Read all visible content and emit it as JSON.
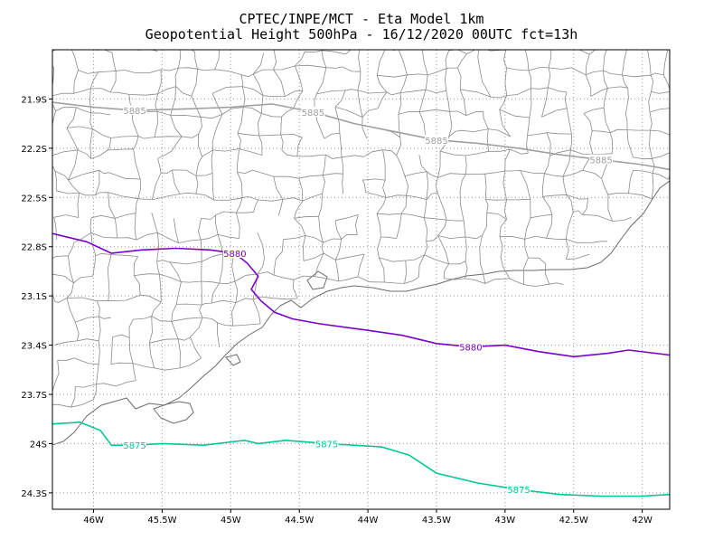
{
  "header": {
    "line1": "CPTEC/INPE/MCT -  Eta Model 1km",
    "line2": "Geopotential Height 500hPa - 16/12/2020 00UTC fct=13h"
  },
  "map": {
    "lon_range": [
      -46.3,
      -41.8
    ],
    "lat_range": [
      -24.4,
      -21.6
    ],
    "lon_ticks": [
      {
        "value": -46.0,
        "label": "46W"
      },
      {
        "value": -45.5,
        "label": "45.5W"
      },
      {
        "value": -45.0,
        "label": "45W"
      },
      {
        "value": -44.5,
        "label": "44.5W"
      },
      {
        "value": -44.0,
        "label": "44W"
      },
      {
        "value": -43.5,
        "label": "43.5W"
      },
      {
        "value": -43.0,
        "label": "43W"
      },
      {
        "value": -42.5,
        "label": "42.5W"
      },
      {
        "value": -42.0,
        "label": "42W"
      }
    ],
    "lat_ticks": [
      {
        "value": -21.9,
        "label": "21.9S"
      },
      {
        "value": -22.2,
        "label": "22.2S"
      },
      {
        "value": -22.5,
        "label": "22.5S"
      },
      {
        "value": -22.8,
        "label": "22.8S"
      },
      {
        "value": -23.1,
        "label": "23.1S"
      },
      {
        "value": -23.4,
        "label": "23.4S"
      },
      {
        "value": -23.7,
        "label": "23.7S"
      },
      {
        "value": -24.0,
        "label": "24S"
      },
      {
        "value": -24.3,
        "label": "24.3S"
      }
    ],
    "grid": "dotted",
    "contours": [
      {
        "level": "5885",
        "color": "#a0a0a0",
        "labels": [
          "5885",
          "5885",
          "5885",
          "5885"
        ],
        "points": [
          [
            -46.3,
            -21.92
          ],
          [
            -46.0,
            -21.95
          ],
          [
            -45.7,
            -21.97
          ],
          [
            -45.3,
            -21.96
          ],
          [
            -45.0,
            -21.95
          ],
          [
            -44.7,
            -21.93
          ],
          [
            -44.4,
            -21.98
          ],
          [
            -44.1,
            -22.05
          ],
          [
            -43.8,
            -22.1
          ],
          [
            -43.5,
            -22.15
          ],
          [
            -43.2,
            -22.17
          ],
          [
            -42.9,
            -22.2
          ],
          [
            -42.6,
            -22.24
          ],
          [
            -42.3,
            -22.27
          ],
          [
            -42.0,
            -22.3
          ],
          [
            -41.8,
            -22.33
          ]
        ]
      },
      {
        "level": "5880",
        "color": "#7a00cc",
        "labels": [
          "5880",
          "5880"
        ],
        "points": [
          [
            -46.3,
            -22.72
          ],
          [
            -46.05,
            -22.77
          ],
          [
            -45.87,
            -22.84
          ],
          [
            -45.65,
            -22.82
          ],
          [
            -45.4,
            -22.81
          ],
          [
            -45.15,
            -22.82
          ],
          [
            -44.97,
            -22.84
          ],
          [
            -44.88,
            -22.9
          ],
          [
            -44.8,
            -22.98
          ],
          [
            -44.85,
            -23.06
          ],
          [
            -44.78,
            -23.13
          ],
          [
            -44.68,
            -23.2
          ],
          [
            -44.55,
            -23.24
          ],
          [
            -44.35,
            -23.27
          ],
          [
            -44.0,
            -23.31
          ],
          [
            -43.75,
            -23.34
          ],
          [
            -43.5,
            -23.39
          ],
          [
            -43.25,
            -23.41
          ],
          [
            -43.0,
            -23.4
          ],
          [
            -42.75,
            -23.44
          ],
          [
            -42.5,
            -23.47
          ],
          [
            -42.25,
            -23.45
          ],
          [
            -42.1,
            -23.43
          ],
          [
            -41.8,
            -23.46
          ]
        ]
      },
      {
        "level": "5875",
        "color": "#00c896",
        "labels": [
          "5875",
          "5875",
          "5875"
        ],
        "points": [
          [
            -46.3,
            -23.88
          ],
          [
            -46.1,
            -23.87
          ],
          [
            -45.95,
            -23.92
          ],
          [
            -45.87,
            -24.01
          ],
          [
            -45.7,
            -24.01
          ],
          [
            -45.5,
            -24.0
          ],
          [
            -45.2,
            -24.01
          ],
          [
            -44.9,
            -23.98
          ],
          [
            -44.8,
            -24.0
          ],
          [
            -44.6,
            -23.98
          ],
          [
            -44.3,
            -24.0
          ],
          [
            -43.9,
            -24.02
          ],
          [
            -43.7,
            -24.07
          ],
          [
            -43.5,
            -24.18
          ],
          [
            -43.2,
            -24.24
          ],
          [
            -42.9,
            -24.28
          ],
          [
            -42.6,
            -24.31
          ],
          [
            -42.3,
            -24.32
          ],
          [
            -42.0,
            -24.32
          ],
          [
            -41.8,
            -24.31
          ]
        ]
      }
    ]
  }
}
